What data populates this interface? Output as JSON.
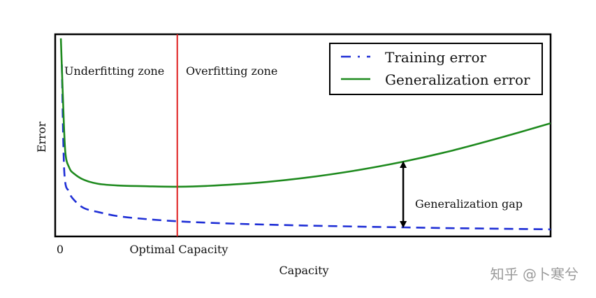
{
  "chart_data": {
    "type": "line",
    "xlabel": "Capacity",
    "ylabel": "Error",
    "xlim": [
      0,
      100
    ],
    "ylim": [
      0,
      100
    ],
    "x_tick_labels": [
      "0",
      "Optimal Capacity"
    ],
    "grid": false,
    "legend_position": "top-right",
    "series": [
      {
        "name": "Training error",
        "style": "dashed",
        "color": "#1f2fd6",
        "x": [
          0.5,
          1,
          2,
          3,
          5,
          8,
          12,
          18,
          24,
          30,
          40,
          50,
          60,
          70,
          80,
          90,
          100
        ],
        "y": [
          85,
          32,
          22,
          18,
          14,
          12,
          10,
          8.5,
          7.5,
          6.8,
          6,
          5.4,
          4.9,
          4.5,
          4.1,
          3.8,
          3.5
        ]
      },
      {
        "name": "Generalization error",
        "style": "solid",
        "color": "#1e8a1e",
        "x": [
          0.3,
          0.7,
          1.2,
          2,
          3,
          5,
          8,
          12,
          18,
          24,
          30,
          40,
          50,
          60,
          70,
          80,
          90,
          100
        ],
        "y": [
          98,
          70,
          42,
          34,
          31,
          28,
          26,
          25.2,
          24.8,
          24.6,
          25,
          26.5,
          29,
          32.5,
          37,
          42.5,
          49,
          56
        ]
      }
    ],
    "vertical_line": {
      "x": 24,
      "color": "#e02020"
    },
    "annotations": {
      "underfitting": "Underfitting zone",
      "overfitting": "Overfitting zone",
      "gap": "Generalization gap",
      "gap_x": 70
    }
  },
  "watermark": "知乎 @卜寒兮"
}
